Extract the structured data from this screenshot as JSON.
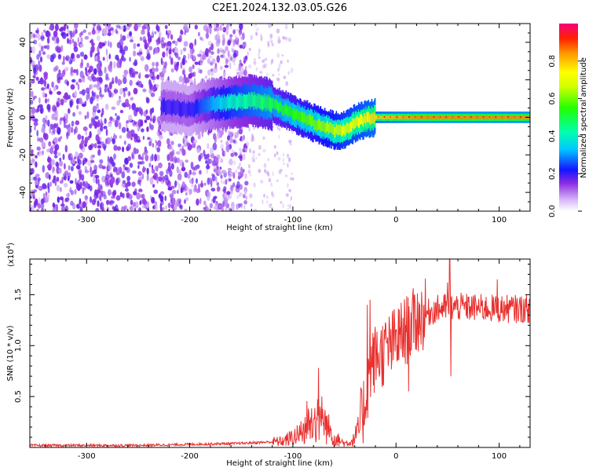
{
  "title": "C2E1.2024.132.03.05.G26",
  "chart_data": [
    {
      "type": "heatmap",
      "xlabel": "Height of straight line (km)",
      "ylabel": "Frequency (Hz)",
      "xlim": [
        -355,
        130
      ],
      "ylim": [
        -50,
        50
      ],
      "x_ticks": [
        -300,
        -200,
        -100,
        0,
        100
      ],
      "y_ticks": [
        -40,
        -20,
        0,
        20,
        40
      ],
      "colorbar": {
        "label": "Normalized spectral amplitude",
        "range": [
          0.0,
          1.0
        ],
        "ticks": [
          "0.0",
          "0.2",
          "0.4",
          "0.6",
          "0.8"
        ]
      },
      "ridge": {
        "x": [
          -225,
          -200,
          -180,
          -160,
          -140,
          -120,
          -100,
          -80,
          -60,
          -50,
          -40,
          -30,
          -20,
          -10,
          0,
          20,
          50,
          100,
          130
        ],
        "frequency": [
          6,
          4,
          7,
          8,
          9,
          7,
          2,
          -3,
          -7,
          -7,
          -3,
          -1,
          0,
          0,
          0,
          0,
          0,
          0,
          0
        ],
        "peak_amplitude": [
          0.2,
          0.2,
          0.3,
          0.4,
          0.45,
          0.5,
          0.55,
          0.6,
          0.65,
          0.7,
          0.72,
          0.75,
          0.78,
          0.8,
          0.82,
          0.85,
          0.85,
          0.85,
          0.85
        ]
      },
      "noise_region_x": [
        -355,
        -165
      ]
    },
    {
      "type": "line",
      "xlabel": "Height of straight line (km)",
      "ylabel": "SNR (10 * v/v)",
      "y_multiplier": "(x10",
      "y_multiplier_exp": "4",
      "y_multiplier_close": ")",
      "xlim": [
        -355,
        130
      ],
      "ylim": [
        0,
        1.85
      ],
      "x_ticks": [
        -300,
        -200,
        -100,
        0,
        100
      ],
      "y_ticks": [
        "0.5",
        "1.0",
        "1.5"
      ],
      "y_tick_values": [
        0.5,
        1.0,
        1.5
      ],
      "series": [
        {
          "color": "#e8302e",
          "envelope": {
            "x": [
              -355,
              -250,
              -200,
              -150,
              -110,
              -95,
              -85,
              -75,
              -68,
              -60,
              -50,
              -42,
              -35,
              -30,
              -25,
              -20,
              -10,
              0,
              10,
              20,
              30,
              40,
              50,
              60,
              80,
              100,
              130
            ],
            "y": [
              0.02,
              0.02,
              0.03,
              0.04,
              0.06,
              0.12,
              0.22,
              0.3,
              0.22,
              0.1,
              0.04,
              0.06,
              0.2,
              0.45,
              0.78,
              0.88,
              0.95,
              1.05,
              1.15,
              1.25,
              1.32,
              1.36,
              1.38,
              1.38,
              1.37,
              1.36,
              1.36
            ]
          },
          "spikes": [
            {
              "x": -75,
              "y": 0.78
            },
            {
              "x": -28,
              "y": 1.4
            },
            {
              "x": -25,
              "y": 1.45
            },
            {
              "x": 52,
              "y": 1.85
            },
            {
              "x": 53,
              "y": 0.7
            },
            {
              "x": 98,
              "y": 1.65
            },
            {
              "x": 12,
              "y": 0.55
            },
            {
              "x": 50,
              "y": 1.62
            }
          ]
        }
      ]
    }
  ]
}
